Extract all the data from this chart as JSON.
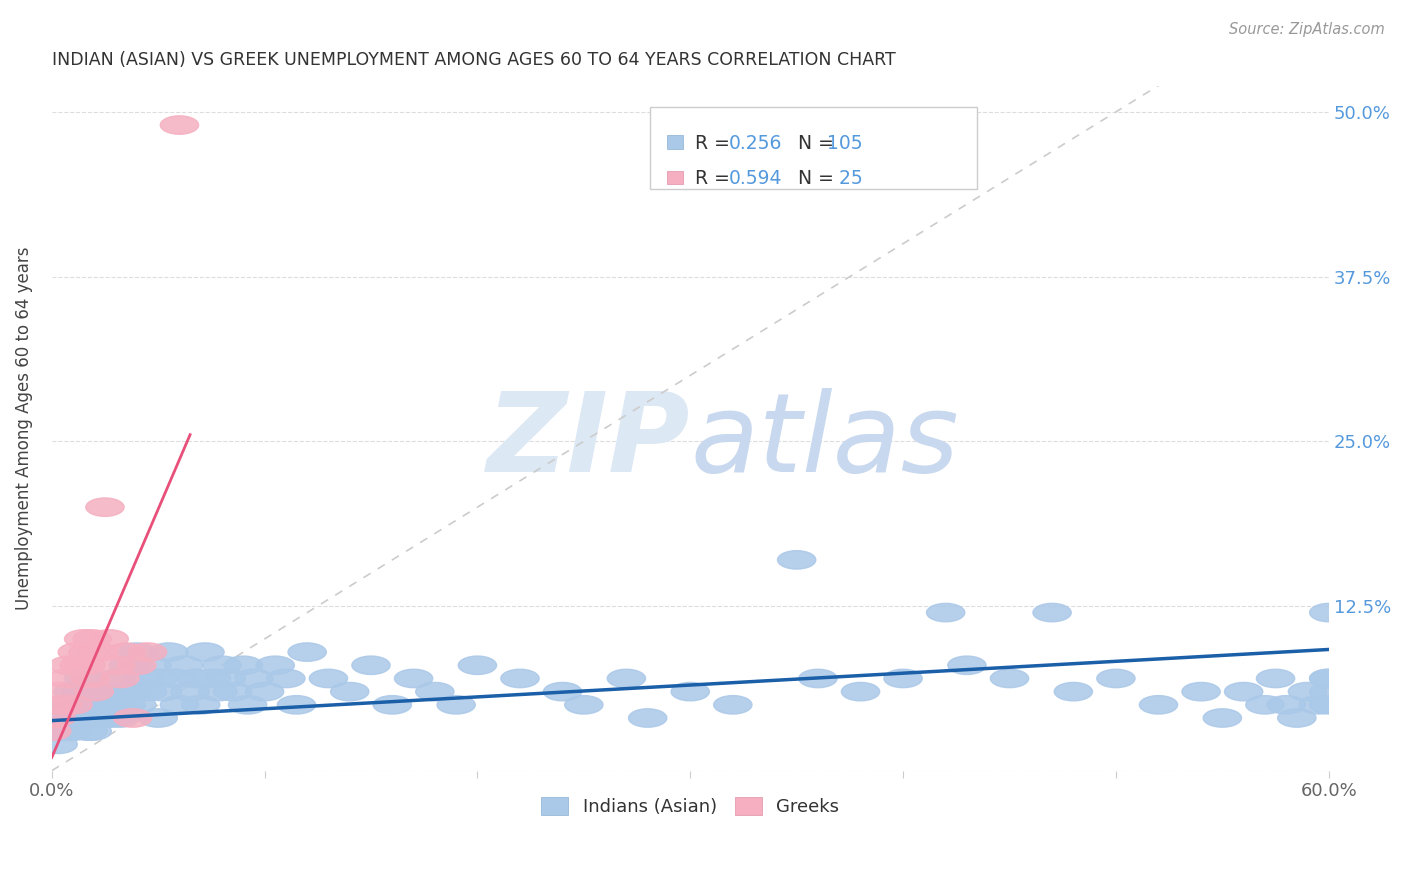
{
  "title": "INDIAN (ASIAN) VS GREEK UNEMPLOYMENT AMONG AGES 60 TO 64 YEARS CORRELATION CHART",
  "source": "Source: ZipAtlas.com",
  "ylabel": "Unemployment Among Ages 60 to 64 years",
  "xlim": [
    0.0,
    0.6
  ],
  "ylim": [
    0.0,
    0.52
  ],
  "x_ticks": [
    0.0,
    0.1,
    0.2,
    0.3,
    0.4,
    0.5,
    0.6
  ],
  "x_tick_labels": [
    "0.0%",
    "",
    "",
    "",
    "",
    "",
    "60.0%"
  ],
  "y_ticks": [
    0.0,
    0.125,
    0.25,
    0.375,
    0.5
  ],
  "y_tick_labels": [
    "",
    "12.5%",
    "25.0%",
    "37.5%",
    "50.0%"
  ],
  "R_indian": 0.256,
  "N_indian": 105,
  "R_greek": 0.594,
  "N_greek": 25,
  "indian_color": "#aac8e8",
  "greek_color": "#f5afc0",
  "trend_indian_color": "#1a5fa8",
  "trend_greek_color": "#e8507a",
  "diagonal_color": "#cccccc",
  "watermark_color": "#dde8f5",
  "grid_color": "#dddddd",
  "right_axis_color": "#5599dd",
  "title_color": "#333333",
  "source_color": "#999999",
  "indian_x": [
    0.0,
    0.003,
    0.005,
    0.007,
    0.008,
    0.009,
    0.01,
    0.01,
    0.012,
    0.013,
    0.014,
    0.015,
    0.015,
    0.016,
    0.017,
    0.018,
    0.018,
    0.019,
    0.019,
    0.02,
    0.02,
    0.021,
    0.022,
    0.023,
    0.024,
    0.025,
    0.026,
    0.027,
    0.028,
    0.03,
    0.03,
    0.032,
    0.033,
    0.035,
    0.036,
    0.038,
    0.04,
    0.04,
    0.042,
    0.045,
    0.047,
    0.05,
    0.05,
    0.052,
    0.055,
    0.058,
    0.06,
    0.062,
    0.065,
    0.068,
    0.07,
    0.072,
    0.075,
    0.078,
    0.08,
    0.082,
    0.085,
    0.09,
    0.092,
    0.095,
    0.1,
    0.105,
    0.11,
    0.115,
    0.12,
    0.13,
    0.14,
    0.15,
    0.16,
    0.17,
    0.18,
    0.19,
    0.2,
    0.22,
    0.24,
    0.25,
    0.27,
    0.28,
    0.3,
    0.32,
    0.35,
    0.36,
    0.38,
    0.4,
    0.42,
    0.43,
    0.45,
    0.47,
    0.48,
    0.5,
    0.52,
    0.54,
    0.55,
    0.56,
    0.57,
    0.575,
    0.58,
    0.585,
    0.59,
    0.595,
    0.6,
    0.6,
    0.6,
    0.6,
    0.6
  ],
  "indian_y": [
    0.03,
    0.02,
    0.04,
    0.03,
    0.05,
    0.04,
    0.06,
    0.03,
    0.05,
    0.04,
    0.06,
    0.04,
    0.07,
    0.05,
    0.03,
    0.06,
    0.04,
    0.05,
    0.03,
    0.04,
    0.06,
    0.05,
    0.04,
    0.06,
    0.05,
    0.04,
    0.06,
    0.05,
    0.04,
    0.05,
    0.07,
    0.04,
    0.06,
    0.05,
    0.08,
    0.06,
    0.05,
    0.09,
    0.07,
    0.06,
    0.08,
    0.04,
    0.07,
    0.06,
    0.09,
    0.07,
    0.05,
    0.08,
    0.06,
    0.07,
    0.05,
    0.09,
    0.07,
    0.06,
    0.08,
    0.07,
    0.06,
    0.08,
    0.05,
    0.07,
    0.06,
    0.08,
    0.07,
    0.05,
    0.09,
    0.07,
    0.06,
    0.08,
    0.05,
    0.07,
    0.06,
    0.05,
    0.08,
    0.07,
    0.06,
    0.05,
    0.07,
    0.04,
    0.06,
    0.05,
    0.16,
    0.07,
    0.06,
    0.07,
    0.12,
    0.08,
    0.07,
    0.12,
    0.06,
    0.07,
    0.05,
    0.06,
    0.04,
    0.06,
    0.05,
    0.07,
    0.05,
    0.04,
    0.06,
    0.05,
    0.07,
    0.06,
    0.05,
    0.07,
    0.12
  ],
  "greek_x": [
    0.0,
    0.002,
    0.003,
    0.005,
    0.007,
    0.008,
    0.01,
    0.012,
    0.013,
    0.015,
    0.016,
    0.017,
    0.018,
    0.019,
    0.02,
    0.022,
    0.025,
    0.027,
    0.03,
    0.032,
    0.035,
    0.038,
    0.04,
    0.045,
    0.06
  ],
  "greek_y": [
    0.03,
    0.04,
    0.06,
    0.05,
    0.07,
    0.08,
    0.05,
    0.09,
    0.08,
    0.1,
    0.08,
    0.09,
    0.07,
    0.1,
    0.06,
    0.09,
    0.2,
    0.1,
    0.08,
    0.07,
    0.09,
    0.04,
    0.08,
    0.09,
    0.49
  ],
  "indian_trend_x": [
    0.0,
    0.6
  ],
  "indian_trend_y": [
    0.038,
    0.092
  ],
  "greek_trend_x": [
    0.0,
    0.065
  ],
  "greek_trend_y": [
    0.01,
    0.255
  ]
}
